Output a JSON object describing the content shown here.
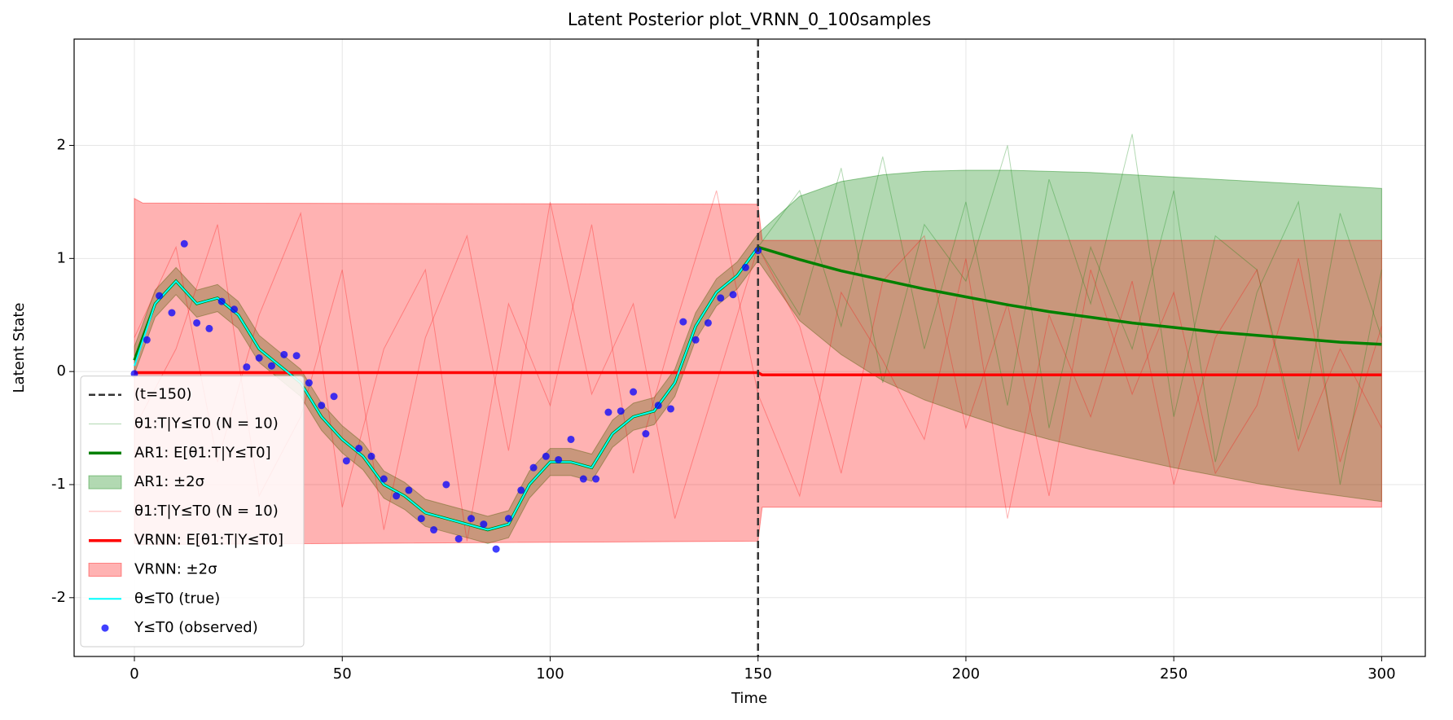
{
  "chart_data": {
    "type": "line",
    "title": "Latent Posterior plot_VRNN_0_100samples",
    "x_label": "Time",
    "y_label": "Latent State",
    "xlim": [
      -14.5,
      310.5
    ],
    "ylim": [
      -2.52,
      2.94
    ],
    "xticks": [
      0,
      50,
      100,
      150,
      200,
      250,
      300
    ],
    "yticks": [
      -2,
      -1,
      0,
      1,
      2
    ],
    "grid": true,
    "legend": "lower left",
    "series": [
      {
        "name": "(t=150)",
        "kind": "vline",
        "color": "#333333",
        "x": [
          150
        ]
      },
      {
        "name": "θ1:T|Y≤T0 (N = 10)",
        "kind": "samples",
        "color": "#008000",
        "x": [
          150,
          160,
          170,
          180,
          190,
          200,
          210,
          220,
          230,
          240,
          250,
          260,
          270,
          280,
          290,
          300
        ],
        "lines": [
          [
            1.1,
            1.6,
            0.4,
            1.9,
            0.2,
            1.5,
            -0.3,
            1.7,
            0.6,
            2.1,
            -0.4,
            1.2,
            0.9,
            -0.6,
            1.4,
            0.3
          ],
          [
            1.1,
            0.5,
            1.8,
            -0.1,
            1.3,
            0.8,
            2.0,
            -0.5,
            1.1,
            0.2,
            1.6,
            -0.8,
            0.7,
            1.5,
            -1.0,
            0.9
          ]
        ]
      },
      {
        "name": "AR1: E[θ1:T|Y≤T0]",
        "kind": "line",
        "color": "#008000",
        "x": [
          0,
          5,
          10,
          15,
          20,
          25,
          30,
          35,
          40,
          45,
          50,
          55,
          60,
          65,
          70,
          75,
          80,
          85,
          90,
          95,
          100,
          105,
          110,
          115,
          120,
          125,
          130,
          135,
          140,
          145,
          150,
          160,
          170,
          180,
          190,
          200,
          210,
          220,
          230,
          240,
          250,
          260,
          270,
          280,
          290,
          300
        ],
        "values": [
          0.1,
          0.6,
          0.8,
          0.6,
          0.65,
          0.5,
          0.2,
          0.05,
          -0.1,
          -0.4,
          -0.6,
          -0.75,
          -1.0,
          -1.1,
          -1.25,
          -1.3,
          -1.35,
          -1.4,
          -1.35,
          -1.0,
          -0.8,
          -0.8,
          -0.85,
          -0.55,
          -0.4,
          -0.35,
          -0.1,
          0.4,
          0.7,
          0.85,
          1.1,
          0.99,
          0.89,
          0.81,
          0.73,
          0.66,
          0.59,
          0.53,
          0.48,
          0.43,
          0.39,
          0.35,
          0.32,
          0.29,
          0.26,
          0.24
        ]
      },
      {
        "name": "AR1: ±2σ",
        "kind": "band",
        "color": "#008000",
        "x": [
          0,
          5,
          10,
          15,
          20,
          25,
          30,
          35,
          40,
          45,
          50,
          55,
          60,
          65,
          70,
          75,
          80,
          85,
          90,
          95,
          100,
          105,
          110,
          115,
          120,
          125,
          130,
          135,
          140,
          145,
          150,
          160,
          170,
          180,
          190,
          200,
          210,
          220,
          230,
          240,
          250,
          260,
          270,
          280,
          290,
          300
        ],
        "upper": [
          0.22,
          0.72,
          0.92,
          0.72,
          0.77,
          0.62,
          0.32,
          0.17,
          0.02,
          -0.28,
          -0.48,
          -0.63,
          -0.88,
          -0.98,
          -1.13,
          -1.18,
          -1.23,
          -1.28,
          -1.23,
          -0.88,
          -0.68,
          -0.68,
          -0.73,
          -0.43,
          -0.28,
          -0.23,
          0.02,
          0.52,
          0.82,
          0.97,
          1.22,
          1.55,
          1.68,
          1.74,
          1.77,
          1.78,
          1.78,
          1.77,
          1.76,
          1.74,
          1.72,
          1.7,
          1.68,
          1.66,
          1.64,
          1.62
        ],
        "lower": [
          -0.02,
          0.48,
          0.68,
          0.48,
          0.53,
          0.38,
          0.08,
          -0.07,
          -0.22,
          -0.52,
          -0.72,
          -0.87,
          -1.12,
          -1.22,
          -1.37,
          -1.42,
          -1.47,
          -1.52,
          -1.47,
          -1.12,
          -0.92,
          -0.92,
          -0.97,
          -0.67,
          -0.52,
          -0.47,
          -0.22,
          0.28,
          0.58,
          0.73,
          0.98,
          0.45,
          0.15,
          -0.08,
          -0.25,
          -0.38,
          -0.5,
          -0.6,
          -0.69,
          -0.77,
          -0.85,
          -0.92,
          -0.99,
          -1.05,
          -1.1,
          -1.15
        ]
      },
      {
        "name": "θ1:T|Y≤T0 (N = 10)",
        "kind": "samples",
        "color": "#ff0000",
        "x": [
          0,
          10,
          20,
          30,
          40,
          50,
          60,
          70,
          80,
          90,
          100,
          110,
          120,
          130,
          140,
          150,
          160,
          170,
          180,
          190,
          200,
          210,
          220,
          230,
          240,
          250,
          260,
          270,
          280,
          290,
          300
        ],
        "lines": [
          [
            0.3,
            1.1,
            -0.8,
            0.5,
            1.4,
            -1.2,
            0.2,
            0.9,
            -1.5,
            0.6,
            -0.3,
            1.3,
            -0.9,
            0.4,
            1.6,
            -0.2,
            -1.1,
            0.7,
            0.1,
            -0.6,
            1.0,
            -1.3,
            0.5,
            -0.4,
            0.8,
            -1.0,
            0.3,
            0.9,
            -0.7,
            0.2,
            -0.5
          ],
          [
            -0.5,
            0.2,
            1.3,
            -1.1,
            -0.4,
            0.9,
            -1.4,
            0.3,
            1.2,
            -0.7,
            1.5,
            -0.2,
            0.6,
            -1.3,
            -0.1,
            1.1,
            0.4,
            -0.9,
            0.8,
            1.2,
            -0.5,
            0.6,
            -1.1,
            0.9,
            -0.2,
            0.7,
            -0.9,
            -0.3,
            1.0,
            -0.8,
            0.4
          ]
        ]
      },
      {
        "name": "VRNN: E[θ1:T|Y≤T0]",
        "kind": "line",
        "color": "#ff0000",
        "x": [
          0,
          150,
          151,
          300
        ],
        "values": [
          -0.01,
          -0.01,
          -0.03,
          -0.03
        ]
      },
      {
        "name": "VRNN: ±2σ",
        "kind": "band",
        "color": "#ff0000",
        "x": [
          0,
          2,
          150,
          151,
          300
        ],
        "upper": [
          1.53,
          1.49,
          1.48,
          1.16,
          1.16
        ],
        "lower": [
          -1.52,
          -1.53,
          -1.5,
          -1.2,
          -1.2
        ]
      },
      {
        "name": "θ≤T0 (true)",
        "kind": "line",
        "color": "#00ffff",
        "x": [
          0,
          5,
          10,
          15,
          20,
          25,
          30,
          35,
          40,
          45,
          50,
          55,
          60,
          65,
          70,
          75,
          80,
          85,
          90,
          95,
          100,
          105,
          110,
          115,
          120,
          125,
          130,
          135,
          140,
          145,
          150
        ],
        "values": [
          0.05,
          0.6,
          0.8,
          0.6,
          0.65,
          0.5,
          0.2,
          0.05,
          -0.1,
          -0.4,
          -0.6,
          -0.75,
          -1.0,
          -1.1,
          -1.25,
          -1.3,
          -1.35,
          -1.4,
          -1.35,
          -1.0,
          -0.8,
          -0.8,
          -0.85,
          -0.55,
          -0.4,
          -0.35,
          -0.1,
          0.4,
          0.7,
          0.85,
          1.1
        ]
      },
      {
        "name": "Y≤T0 (observed)",
        "kind": "scatter",
        "color": "#0000ff",
        "x": [
          0,
          3,
          6,
          9,
          12,
          15,
          18,
          21,
          24,
          27,
          30,
          33,
          36,
          39,
          42,
          45,
          48,
          51,
          54,
          57,
          60,
          63,
          66,
          69,
          72,
          75,
          78,
          81,
          84,
          87,
          90,
          93,
          96,
          99,
          102,
          105,
          108,
          111,
          114,
          117,
          120,
          123,
          126,
          129,
          132,
          135,
          138,
          141,
          144,
          147,
          150
        ],
        "values": [
          -0.02,
          0.28,
          0.67,
          0.52,
          1.13,
          0.43,
          0.38,
          0.62,
          0.55,
          0.04,
          0.12,
          0.05,
          0.15,
          0.14,
          -0.1,
          -0.3,
          -0.22,
          -0.79,
          -0.68,
          -0.75,
          -0.95,
          -1.1,
          -1.05,
          -1.3,
          -1.4,
          -1.0,
          -1.48,
          -1.3,
          -1.35,
          -1.57,
          -1.3,
          -1.05,
          -0.85,
          -0.75,
          -0.78,
          -0.6,
          -0.95,
          -0.95,
          -0.36,
          -0.35,
          -0.18,
          -0.55,
          -0.3,
          -0.33,
          0.44,
          0.28,
          0.43,
          0.65,
          0.68,
          0.92,
          1.07
        ]
      }
    ]
  }
}
